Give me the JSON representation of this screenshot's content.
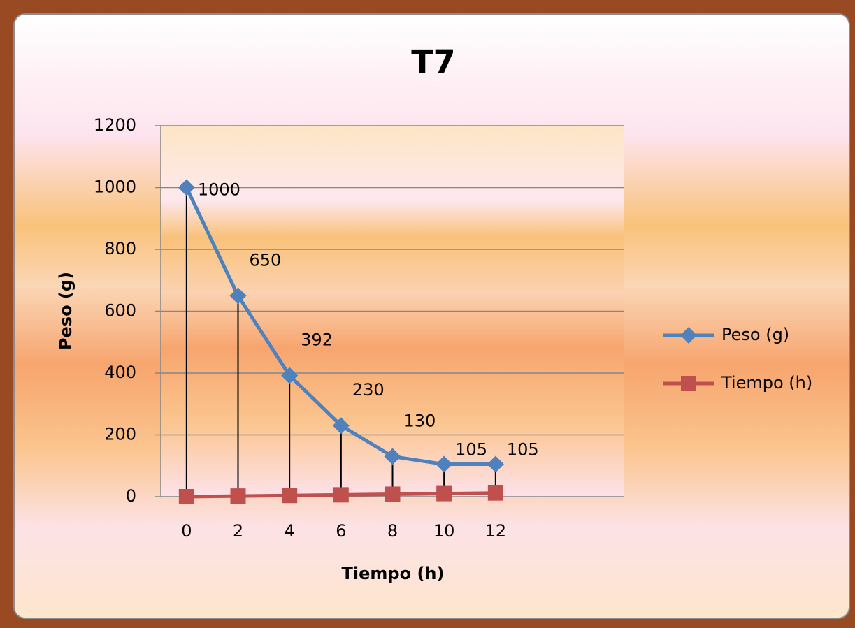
{
  "chart_data": {
    "type": "line",
    "title": "T7",
    "x_label": "Tiempo (h)",
    "y_label": "Peso (g)",
    "categories": [
      "0",
      "2",
      "4",
      "6",
      "8",
      "10",
      "12",
      null,
      null
    ],
    "series": [
      {
        "name": "Peso (g)",
        "color": "#4f81bd",
        "marker": "diamond",
        "values": [
          1000,
          650,
          392,
          230,
          130,
          105,
          105,
          null,
          null
        ],
        "data_labels": true
      },
      {
        "name": "Tiempo (h)",
        "color": "#c0504d",
        "marker": "square",
        "values": [
          0,
          2,
          4,
          6,
          8,
          10,
          12,
          null,
          null
        ],
        "data_labels": false
      }
    ],
    "ylim": [
      0,
      1200
    ],
    "yticks": [
      0,
      200,
      400,
      600,
      800,
      1000,
      1200
    ],
    "grid": true,
    "drop_lines": true,
    "legend": "right"
  }
}
